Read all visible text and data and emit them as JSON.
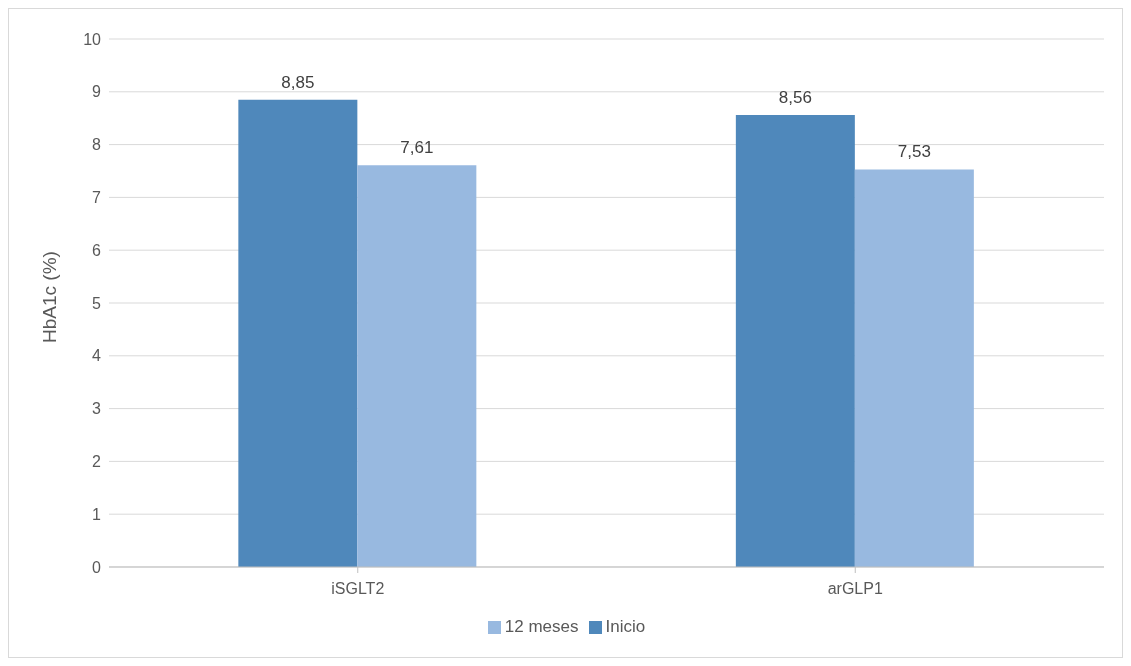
{
  "chart_data": {
    "type": "bar",
    "ylabel": "HbA1c (%)",
    "categories": [
      "iSGLT2",
      "arGLP1"
    ],
    "series": [
      {
        "name": "Inicio",
        "color": "#4f88bb",
        "values": [
          8.85,
          8.56
        ],
        "value_labels": [
          "8,85",
          "8,56"
        ]
      },
      {
        "name": "12 meses",
        "color": "#98b9e0",
        "values": [
          7.61,
          7.53
        ],
        "value_labels": [
          "7,61",
          "7,53"
        ]
      }
    ],
    "ylim": [
      0,
      10
    ],
    "yticks": [
      0,
      1,
      2,
      3,
      4,
      5,
      6,
      7,
      8,
      9,
      10
    ],
    "grid": "y",
    "legend": "bottom"
  }
}
